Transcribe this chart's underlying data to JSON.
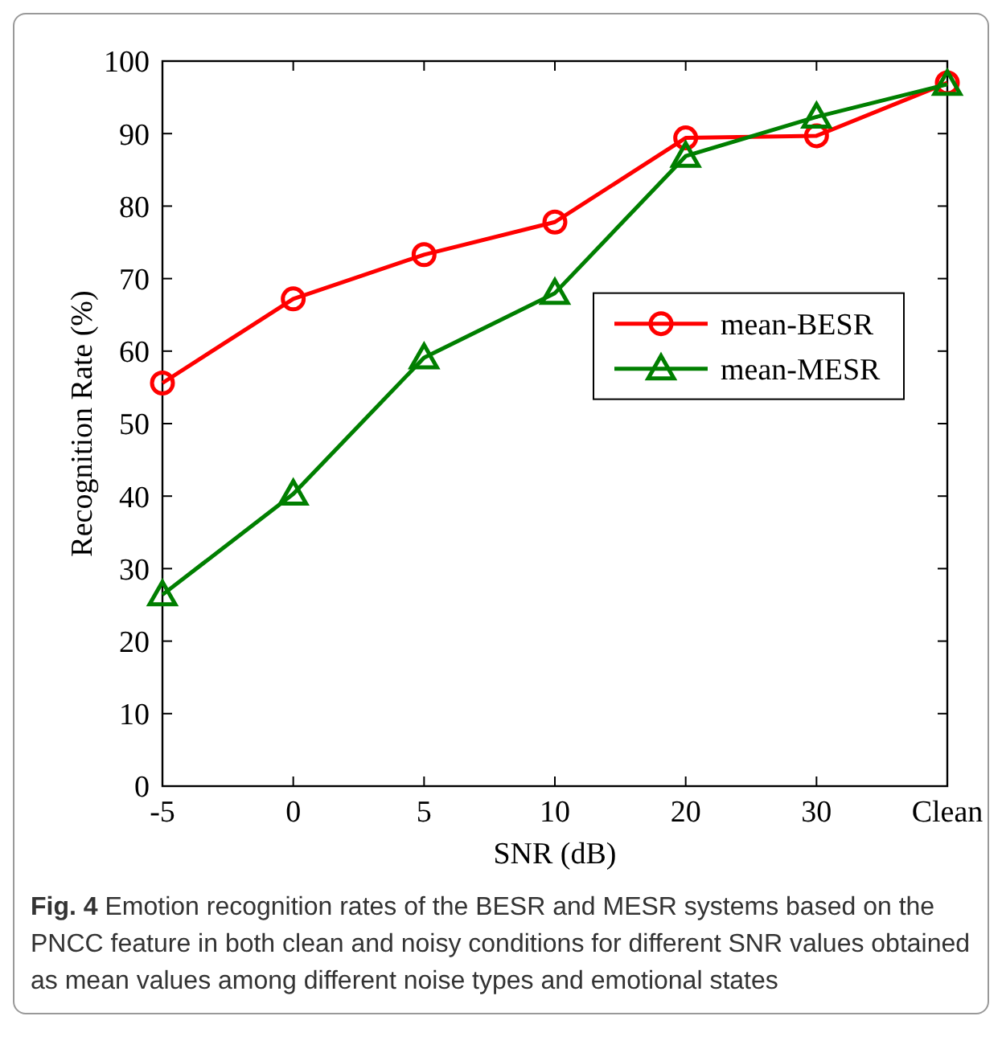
{
  "chart_data": {
    "type": "line",
    "xlabel": "SNR (dB)",
    "ylabel": "Recognition Rate (%)",
    "categories": [
      "-5",
      "0",
      "5",
      "10",
      "20",
      "30",
      "Clean"
    ],
    "series": [
      {
        "name": "mean-BESR",
        "color": "#ff0000",
        "marker": "circle",
        "values": [
          55.6,
          67.2,
          73.3,
          77.8,
          89.4,
          89.7,
          97.0
        ]
      },
      {
        "name": "mean-MESR",
        "color": "#007f00",
        "marker": "triangle",
        "values": [
          26.4,
          40.3,
          59.1,
          68.0,
          86.9,
          92.3,
          96.8
        ]
      }
    ],
    "ylim": [
      0,
      100
    ],
    "yticks": [
      0,
      10,
      20,
      30,
      40,
      50,
      60,
      70,
      80,
      90,
      100
    ],
    "legend": "right",
    "grid": false,
    "line_style": "solid",
    "annotations": [
      "Fig. 4",
      "Emotion recognition rates of the BESR and MESR systems based on the PNCC feature in both clean and noisy conditions for different SNR values obtained as mean values among different noise types and emotional states"
    ]
  }
}
